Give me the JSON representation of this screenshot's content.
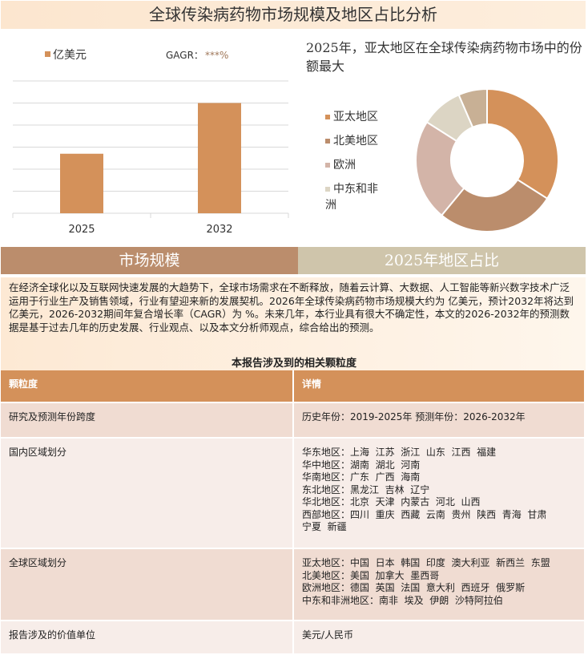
{
  "title": "全球传染病药物市场规模及地区占比分析",
  "chart_data": [
    {
      "type": "bar",
      "legend": "亿美元",
      "annotation_label": "GAGR：",
      "annotation_value": "***%",
      "categories": [
        "2025",
        "2032"
      ],
      "values": [
        2.7,
        5.0
      ],
      "ylim": [
        0,
        6
      ],
      "grid": true,
      "color": "#d4915a",
      "legend_position": "top-left"
    },
    {
      "type": "pie",
      "donut": true,
      "title": "2025年，亚太地区在全球传染病药物市场中的份额最大",
      "labels": [
        "亚太地区",
        "北美地区",
        "欧洲",
        "中东和非洲",
        ""
      ],
      "values": [
        34,
        27,
        23,
        9.5,
        6.5
      ],
      "colors": [
        "#d4915a",
        "#bb8d6c",
        "#d3b4a8",
        "#dcd5c4",
        "#c8b095"
      ],
      "legend_position": "left"
    }
  ],
  "tabs": {
    "left": "市场规模",
    "right": "2025年地区占比"
  },
  "description": "在经济全球化以及互联网快速发展的大趋势下，全球市场需求在不断释放，随着云计算、大数据、人工智能等新兴数字技术广泛运用于行业生产及销售领域，行业有望迎来新的发展契机。2026年全球传染病药物市场规模大约为 亿美元，预计2032年将达到 亿美元，2026-2032期间年复合增长率（CAGR）为 %。未来几年，本行业具有很大不确定性，本文的2026-2032年的预测数据是基于过去几年的历史发展、行业观点、以及本文分析师观点，综合给出的预测。",
  "table": {
    "title": "本报告涉及到的相关颗粒度",
    "headers": [
      "颗粒度",
      "详情"
    ],
    "rows": [
      {
        "label": "研究及预测年份跨度",
        "lines": [
          "历史年份：2019-2025年 预测年份：2026-2032年"
        ]
      },
      {
        "label": "国内区域划分",
        "lines": [
          "华东地区：上海  江苏  浙江  山东  江西  福建",
          "华中地区：湖南  湖北  河南",
          "华南地区：广东  广西  海南",
          "东北地区：黑龙江  吉林  辽宁",
          "华北地区：北京  天津  内蒙古  河北  山西",
          "西部地区：四川  重庆  西藏  云南  贵州  陕西  青海  甘肃",
          "宁夏  新疆"
        ]
      },
      {
        "label": "全球区域划分",
        "lines": [
          "亚太地区：中国  日本  韩国  印度  澳大利亚  新西兰  东盟",
          "北美地区：美国  加拿大  墨西哥",
          "欧洲地区：德国  英国  法国  意大利  西班牙  俄罗斯",
          "中东和非洲地区：南非  埃及  伊朗  沙特阿拉伯"
        ]
      },
      {
        "label": "报告涉及的价值单位",
        "lines": [
          "美元/人民币"
        ]
      }
    ]
  }
}
